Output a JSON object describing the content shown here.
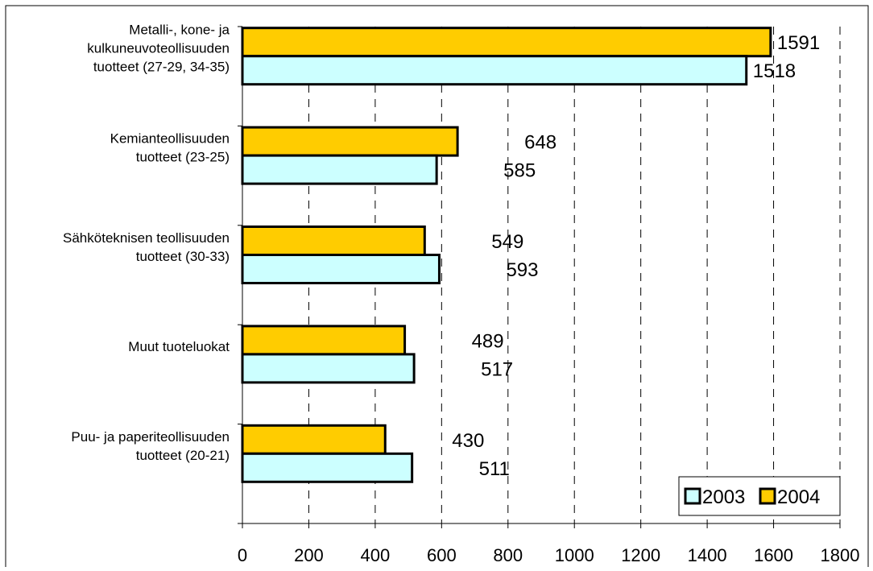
{
  "chart_data": {
    "type": "bar",
    "orientation": "horizontal",
    "title": "",
    "xlabel": "",
    "ylabel": "",
    "xlim": [
      0,
      1800
    ],
    "x_ticks": [
      "0",
      "200",
      "400",
      "600",
      "800",
      "1000",
      "1200",
      "1400",
      "1600",
      "1800"
    ],
    "grid": "vertical dashed",
    "legend_position": "bottom-right",
    "categories": [
      [
        "Metalli-, kone- ja",
        "kulkuneuvoteollisuuden",
        "tuotteet (27-29, 34-35)"
      ],
      [
        "Kemianteollisuuden",
        "tuotteet (23-25)"
      ],
      [
        "Sähköteknisen teollisuuden",
        "tuotteet (30-33)"
      ],
      [
        "Muut tuoteluokat"
      ],
      [
        "Puu- ja paperiteollisuuden",
        "tuotteet (20-21)"
      ]
    ],
    "series": [
      {
        "name": "2004",
        "color": "#FFCC00",
        "values": [
          1591,
          648,
          549,
          489,
          430
        ],
        "labels": [
          "1591",
          "648",
          "549",
          "489",
          "430"
        ]
      },
      {
        "name": "2003",
        "color": "#CCFFFF",
        "values": [
          1518,
          585,
          593,
          517,
          511
        ],
        "labels": [
          "1518",
          "585",
          "593",
          "517",
          "511"
        ]
      }
    ],
    "legend": [
      {
        "name": "2003",
        "color": "#CCFFFF"
      },
      {
        "name": "2004",
        "color": "#FFCC00"
      }
    ]
  }
}
